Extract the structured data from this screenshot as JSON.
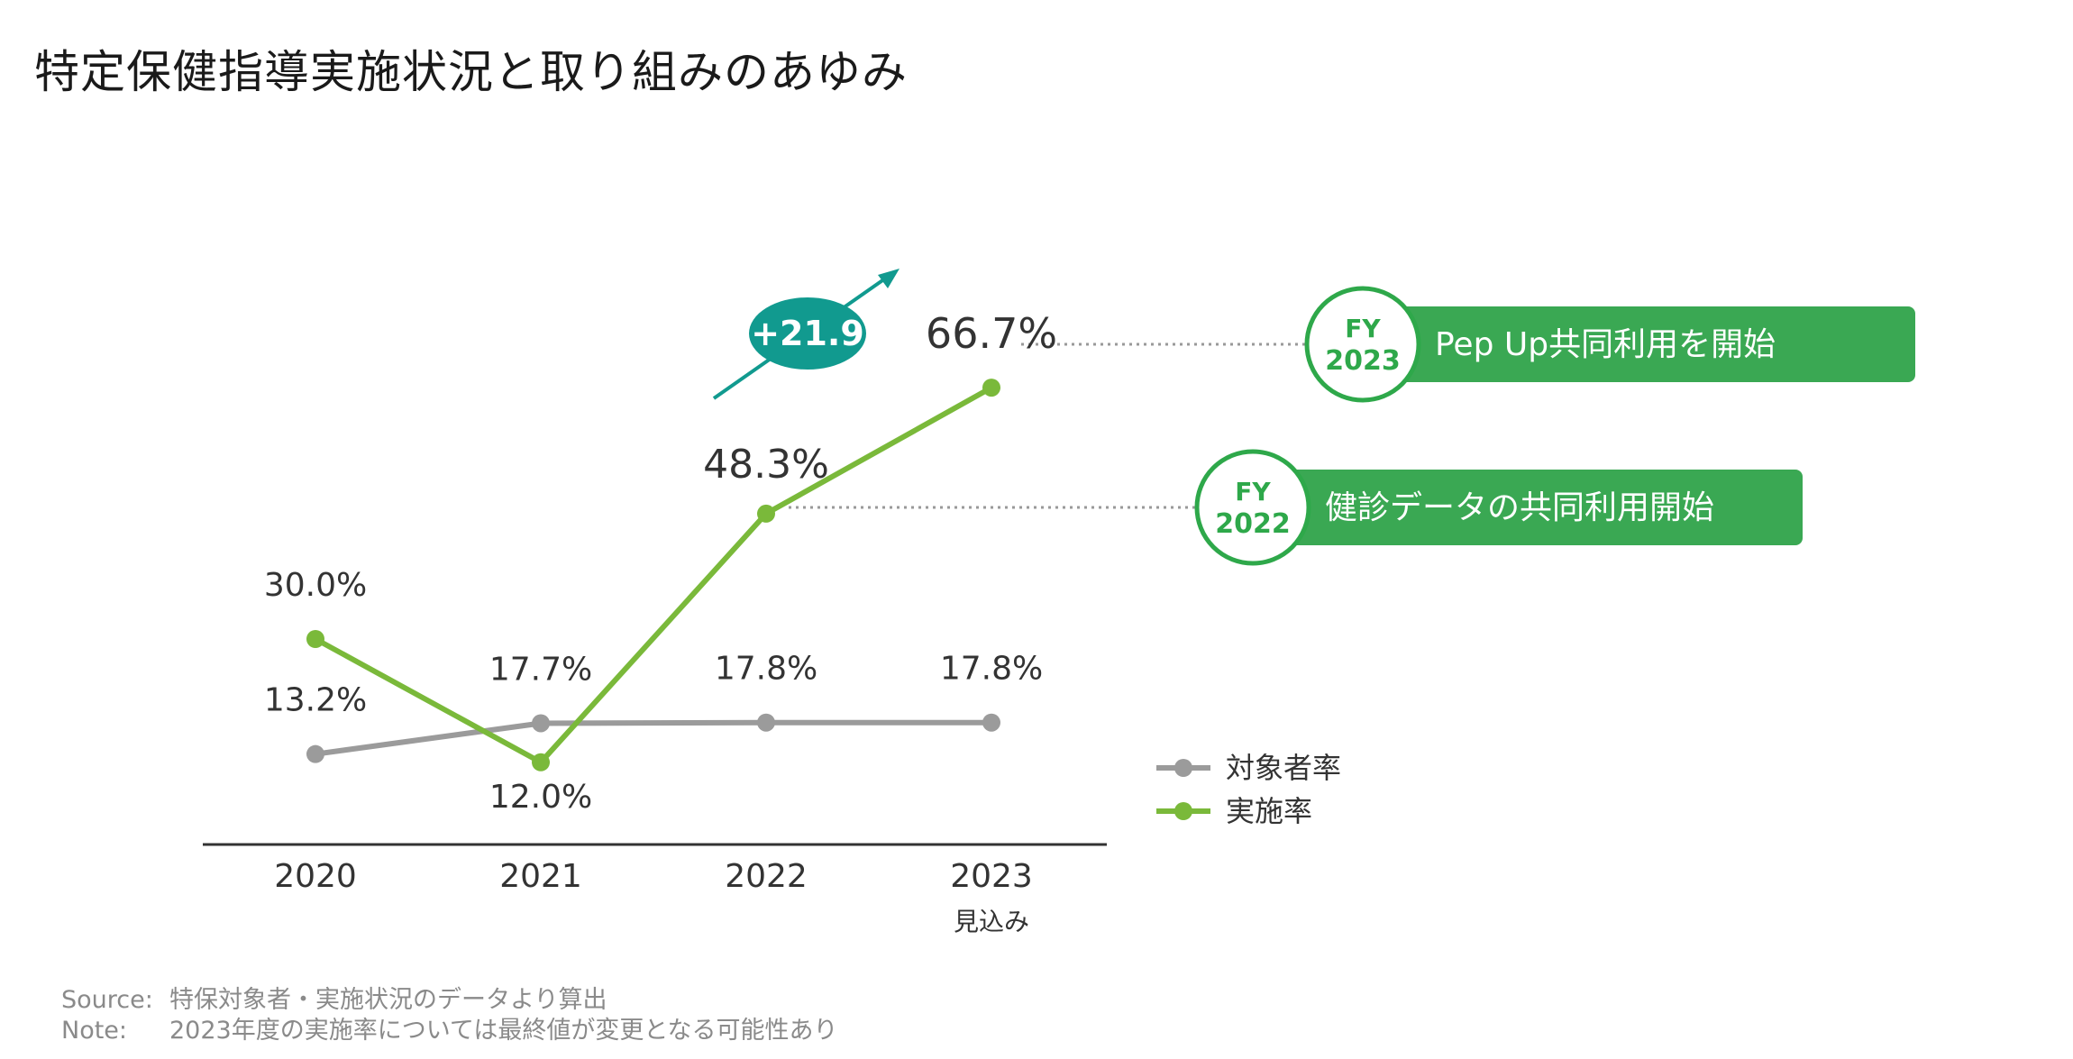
{
  "title": "特定保健指導実施状況と取り組みのあゆみ",
  "colors": {
    "green": "#7ab93a",
    "gray": "#9b9b9b",
    "teal": "#119a8f",
    "banner": "#3aa853",
    "circle_border": "#2ea84a",
    "axis": "#333333"
  },
  "chart_data": {
    "type": "line",
    "title": "",
    "categories": [
      "2020",
      "2021",
      "2022",
      "2023"
    ],
    "category_sublabels": [
      "",
      "",
      "",
      "見込み"
    ],
    "ylim": [
      0,
      100
    ],
    "grid": false,
    "legend": "right",
    "series": [
      {
        "name": "対象者率",
        "color": "#9b9b9b",
        "values": [
          13.2,
          17.7,
          17.8,
          17.8
        ],
        "labels": [
          "13.2%",
          "17.7%",
          "17.8%",
          "17.8%"
        ]
      },
      {
        "name": "実施率",
        "color": "#7ab93a",
        "values": [
          30.0,
          12.0,
          48.3,
          66.7
        ],
        "labels": [
          "30.0%",
          "12.0%",
          "48.3%",
          "66.7%"
        ]
      }
    ],
    "annotations": [
      {
        "type": "change-badge",
        "text": "+21.9"
      },
      {
        "type": "milestone",
        "fy": "FY",
        "year": "2022",
        "text": "健診データの共同利用開始",
        "category_index": 2,
        "series_index": 1
      },
      {
        "type": "milestone",
        "fy": "FY",
        "year": "2023",
        "text": "Pep Up共同利用を開始",
        "category_index": 3,
        "series_index": 1
      }
    ]
  },
  "footer": {
    "source_label": "Source:",
    "source_text": "特保対象者・実施状況のデータより算出",
    "note_label": "Note:",
    "note_text": "2023年度の実施率については最終値が変更となる可能性あり"
  }
}
